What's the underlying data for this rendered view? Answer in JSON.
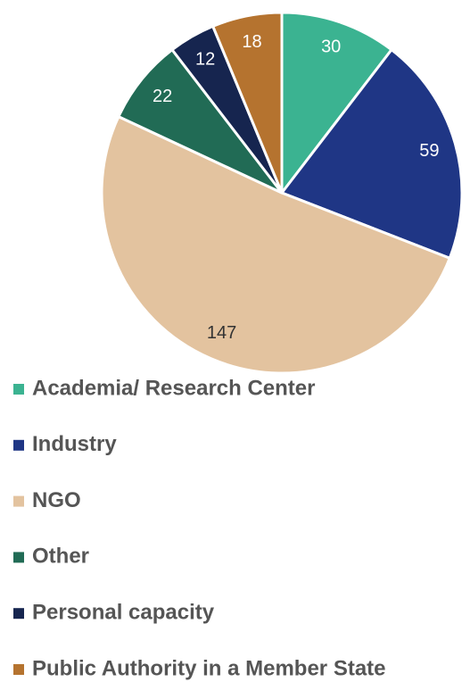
{
  "chart_data": {
    "type": "pie",
    "categories": [
      "Academia/ Research Center",
      "Industry",
      "NGO",
      "Other",
      "Personal capacity",
      "Public Authority in a Member State"
    ],
    "values": [
      30,
      59,
      147,
      22,
      12,
      18
    ],
    "colors": [
      "#3bb391",
      "#1f3685",
      "#e3c39f",
      "#216b55",
      "#16254f",
      "#b5732f"
    ],
    "legend": "bottom"
  }
}
